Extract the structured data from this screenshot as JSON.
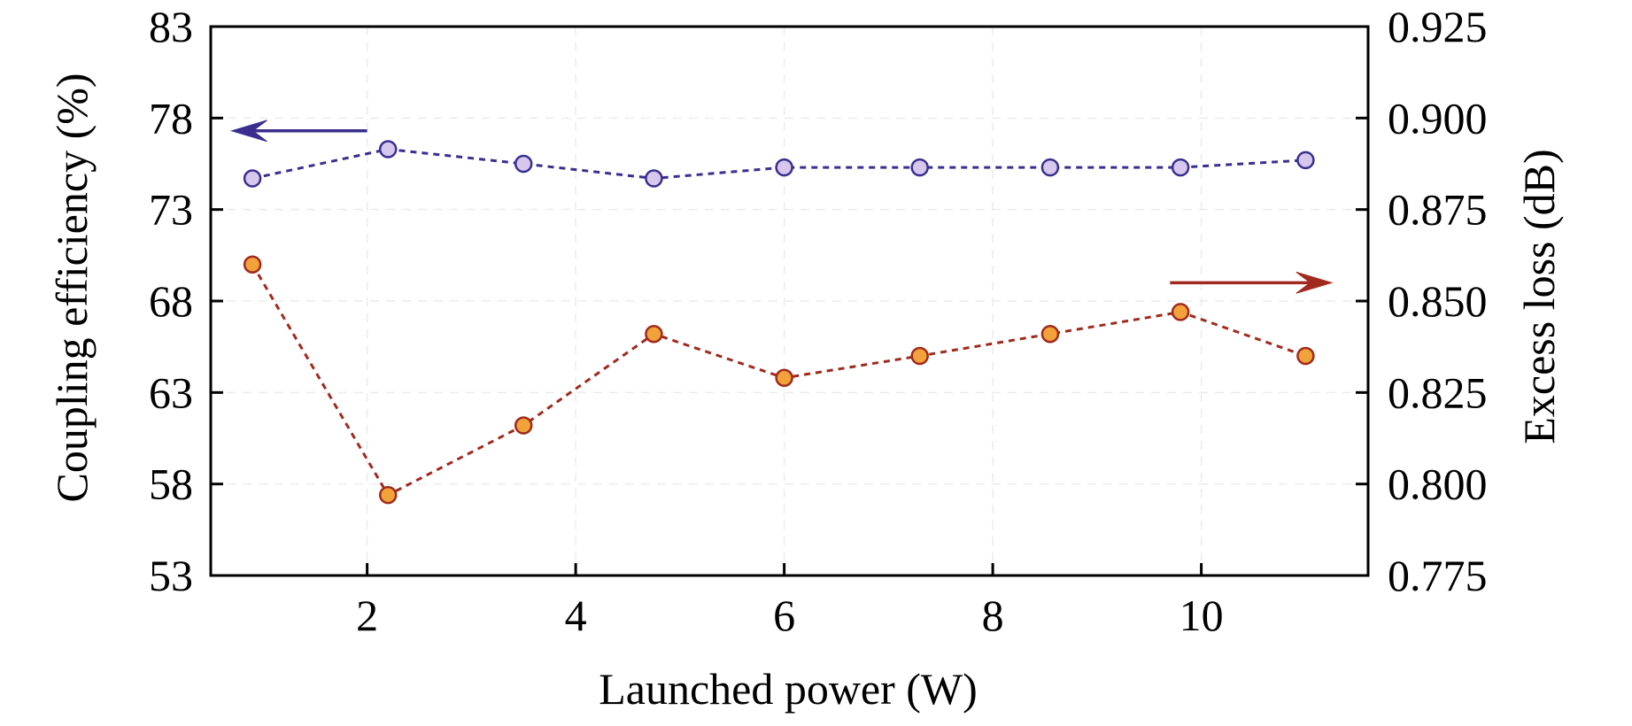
{
  "chart_data": {
    "type": "line",
    "title": "",
    "xlabel": "Launched power (W)",
    "ylabel_left": "Coupling efficiency (%)",
    "ylabel_right": "Excess loss (dB)",
    "xlim": [
      0.5,
      11.6
    ],
    "xticks": [
      2,
      4,
      6,
      8,
      10
    ],
    "xtick_labels": [
      "2",
      "4",
      "6",
      "8",
      "10"
    ],
    "ylim_left": [
      53,
      83
    ],
    "yticks_left": [
      53,
      58,
      63,
      68,
      73,
      78,
      83
    ],
    "ytick_labels_left": [
      "53",
      "58",
      "63",
      "68",
      "73",
      "78",
      "83"
    ],
    "ylim_right": [
      0.775,
      0.925
    ],
    "yticks_right": [
      0.775,
      0.8,
      0.825,
      0.85,
      0.875,
      0.9,
      0.925
    ],
    "ytick_labels_right": [
      "0.775",
      "0.800",
      "0.825",
      "0.850",
      "0.875",
      "0.900",
      "0.925"
    ],
    "grid": true,
    "series": [
      {
        "axis": "left",
        "color": "#3a2f8f",
        "marker_fill": "#d6c8ec",
        "line_style": "dashed",
        "x": [
          0.9,
          2.2,
          3.5,
          4.75,
          6.0,
          7.3,
          8.55,
          9.8,
          11.0
        ],
        "y": [
          74.7,
          76.3,
          75.5,
          74.7,
          75.3,
          75.3,
          75.3,
          75.3,
          75.7
        ]
      },
      {
        "axis": "right",
        "color": "#a02a1e",
        "marker_fill": "#f2a23a",
        "line_style": "dashed",
        "x": [
          0.9,
          2.2,
          3.5,
          4.75,
          6.0,
          7.3,
          8.55,
          9.8,
          11.0
        ],
        "y": [
          0.86,
          0.797,
          0.816,
          0.841,
          0.829,
          0.835,
          0.841,
          0.847,
          0.835
        ]
      }
    ],
    "annotations": [
      {
        "type": "arrow",
        "direction": "left",
        "color": "#3a2f8f",
        "x_from": 2.0,
        "x_to": 0.7,
        "y": 77.3,
        "axis": "left"
      },
      {
        "type": "arrow",
        "direction": "right",
        "color": "#a02a1e",
        "x_from": 9.7,
        "x_to": 11.25,
        "y": 0.855,
        "axis": "right"
      }
    ]
  }
}
